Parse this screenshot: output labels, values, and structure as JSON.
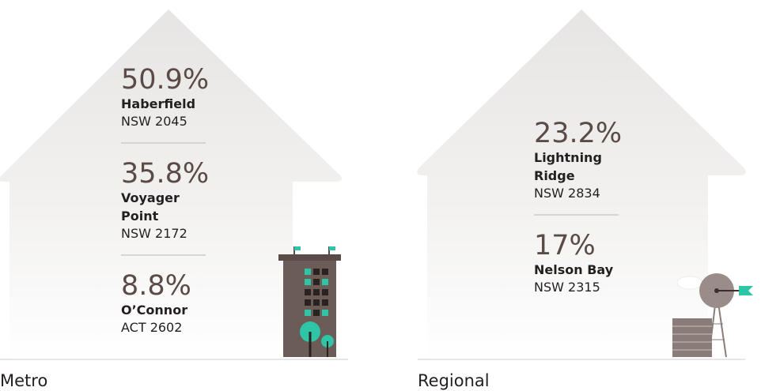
{
  "panels": [
    {
      "label": "Metro",
      "entries": [
        {
          "percent": "50.9%",
          "name": [
            "Haberfield"
          ],
          "postcode": "NSW 2045"
        },
        {
          "percent": "35.8%",
          "name": [
            "Voyager",
            "Point"
          ],
          "postcode": "NSW 2172"
        },
        {
          "percent": "8.8%",
          "name": [
            "O’Connor"
          ],
          "postcode": "ACT 2602"
        }
      ]
    },
    {
      "label": "Regional",
      "entries": [
        {
          "percent": "23.2%",
          "name": [
            "Lightning",
            "Ridge"
          ],
          "postcode": "NSW 2834"
        },
        {
          "percent": "17%",
          "name": [
            "Nelson Bay"
          ],
          "postcode": "NSW 2315"
        }
      ]
    }
  ]
}
